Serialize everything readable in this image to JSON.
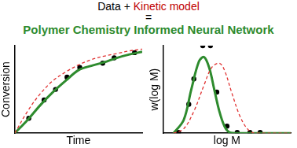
{
  "header": {
    "parts": [
      {
        "text": "Data + ",
        "color": "#000000"
      },
      {
        "text": "Kinetic model",
        "color": "#c00000"
      }
    ],
    "equals": "=",
    "subtitle": {
      "text": "Polymer Chemistry Informed Neural Network",
      "color": "#2e8b2e"
    }
  },
  "chart_data": [
    {
      "type": "line",
      "xlabel": "Time",
      "ylabel": "Conversion",
      "xlim": [
        0,
        10
      ],
      "ylim": [
        0,
        1
      ],
      "grid": false,
      "tick_labels": false,
      "series": [
        {
          "name": "Data",
          "type": "scatter",
          "marker": "circle",
          "color": "#000000",
          "x": [
            1.1,
            2.3,
            3.2,
            4.1,
            5.1,
            6.9,
            7.8,
            9.4
          ],
          "values": [
            0.17,
            0.38,
            0.5,
            0.64,
            0.75,
            0.8,
            0.86,
            0.92
          ]
        },
        {
          "name": "Polymer Chemistry Informed Neural Network",
          "type": "line",
          "line_style": "solid",
          "color": "#2e8b2e",
          "x": [
            0,
            1,
            2,
            3,
            4,
            5,
            6,
            7,
            8,
            9,
            10
          ],
          "values": [
            0,
            0.15,
            0.32,
            0.47,
            0.6,
            0.72,
            0.77,
            0.81,
            0.86,
            0.9,
            0.93
          ]
        },
        {
          "name": "Kinetic model",
          "type": "line",
          "line_style": "dashed",
          "color": "#e03030",
          "x": [
            0,
            1,
            2,
            3,
            4,
            5,
            6,
            7,
            8,
            9,
            10
          ],
          "values": [
            0,
            0.25,
            0.45,
            0.6,
            0.7,
            0.78,
            0.84,
            0.88,
            0.91,
            0.94,
            0.96
          ]
        }
      ]
    },
    {
      "type": "line",
      "xlabel": "log M",
      "ylabel": "w(log M)",
      "xlim": [
        2,
        7
      ],
      "ylim": [
        0,
        1
      ],
      "grid": false,
      "tick_labels": false,
      "series": [
        {
          "name": "Data",
          "type": "scatter",
          "marker": "circle",
          "color": "#000000",
          "x": [
            2.6,
            3.0,
            3.2,
            3.55,
            3.85,
            4.1,
            4.5,
            4.9,
            5.4,
            5.8
          ],
          "values": [
            0.01,
            0.33,
            0.62,
            1.0,
            1.0,
            0.47,
            0.08,
            0.01,
            0.01,
            0.01
          ]
        },
        {
          "name": "Polymer Chemistry Informed Neural Network",
          "type": "line",
          "line_style": "solid",
          "color": "#2e8b2e",
          "x": [
            2.4,
            2.8,
            3.1,
            3.4,
            3.6,
            3.8,
            4.0,
            4.2,
            4.4,
            4.6,
            5.0,
            7.0
          ],
          "values": [
            0,
            0.15,
            0.5,
            0.82,
            0.87,
            0.75,
            0.5,
            0.25,
            0.08,
            0.01,
            0,
            0
          ]
        },
        {
          "name": "Kinetic model",
          "type": "line",
          "line_style": "dashed",
          "color": "#e03030",
          "x": [
            2.4,
            2.8,
            3.2,
            3.6,
            3.9,
            4.2,
            4.4,
            4.7,
            5.0,
            5.3,
            5.6,
            7.0
          ],
          "values": [
            0,
            0.05,
            0.25,
            0.55,
            0.75,
            0.8,
            0.72,
            0.45,
            0.2,
            0.05,
            0,
            0
          ]
        }
      ]
    }
  ]
}
